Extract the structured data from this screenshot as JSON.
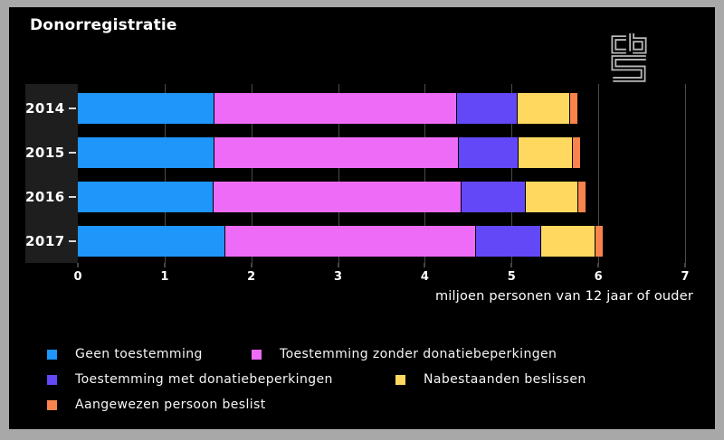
{
  "title": "Donorregistratie",
  "logo": {
    "name": "cbs-logo"
  },
  "colors": {
    "background": "#000000",
    "frame": "#a8a8a8",
    "grid": "#4a4a4a",
    "year_panel": "#1e1e1e",
    "text": "#ffffff"
  },
  "chart_data": {
    "type": "bar",
    "orientation": "horizontal",
    "stacked": true,
    "title": "Donorregistratie",
    "xlabel": "miljoen personen van 12 jaar of ouder",
    "xlim": [
      0,
      7
    ],
    "xticks": [
      0,
      1,
      2,
      3,
      4,
      5,
      6,
      7
    ],
    "grid": true,
    "legend_position": "bottom",
    "categories": [
      "2014",
      "2015",
      "2016",
      "2017"
    ],
    "series": [
      {
        "name": "Geen toestemming",
        "color": "#1E96FA",
        "values": [
          1.58,
          1.58,
          1.57,
          1.7
        ]
      },
      {
        "name": "Toestemming zonder donatiebeperkingen",
        "color": "#EE6BF8",
        "values": [
          2.79,
          2.81,
          2.85,
          2.89
        ]
      },
      {
        "name": "Toestemming met donatiebeperkingen",
        "color": "#6348F7",
        "values": [
          0.7,
          0.69,
          0.74,
          0.75
        ]
      },
      {
        "name": "Nabestaanden beslissen",
        "color": "#FFD95F",
        "values": [
          0.61,
          0.63,
          0.61,
          0.63
        ]
      },
      {
        "name": "Aangewezen persoon beslist",
        "color": "#F9834C",
        "values": [
          0.09,
          0.09,
          0.09,
          0.09
        ]
      }
    ]
  }
}
